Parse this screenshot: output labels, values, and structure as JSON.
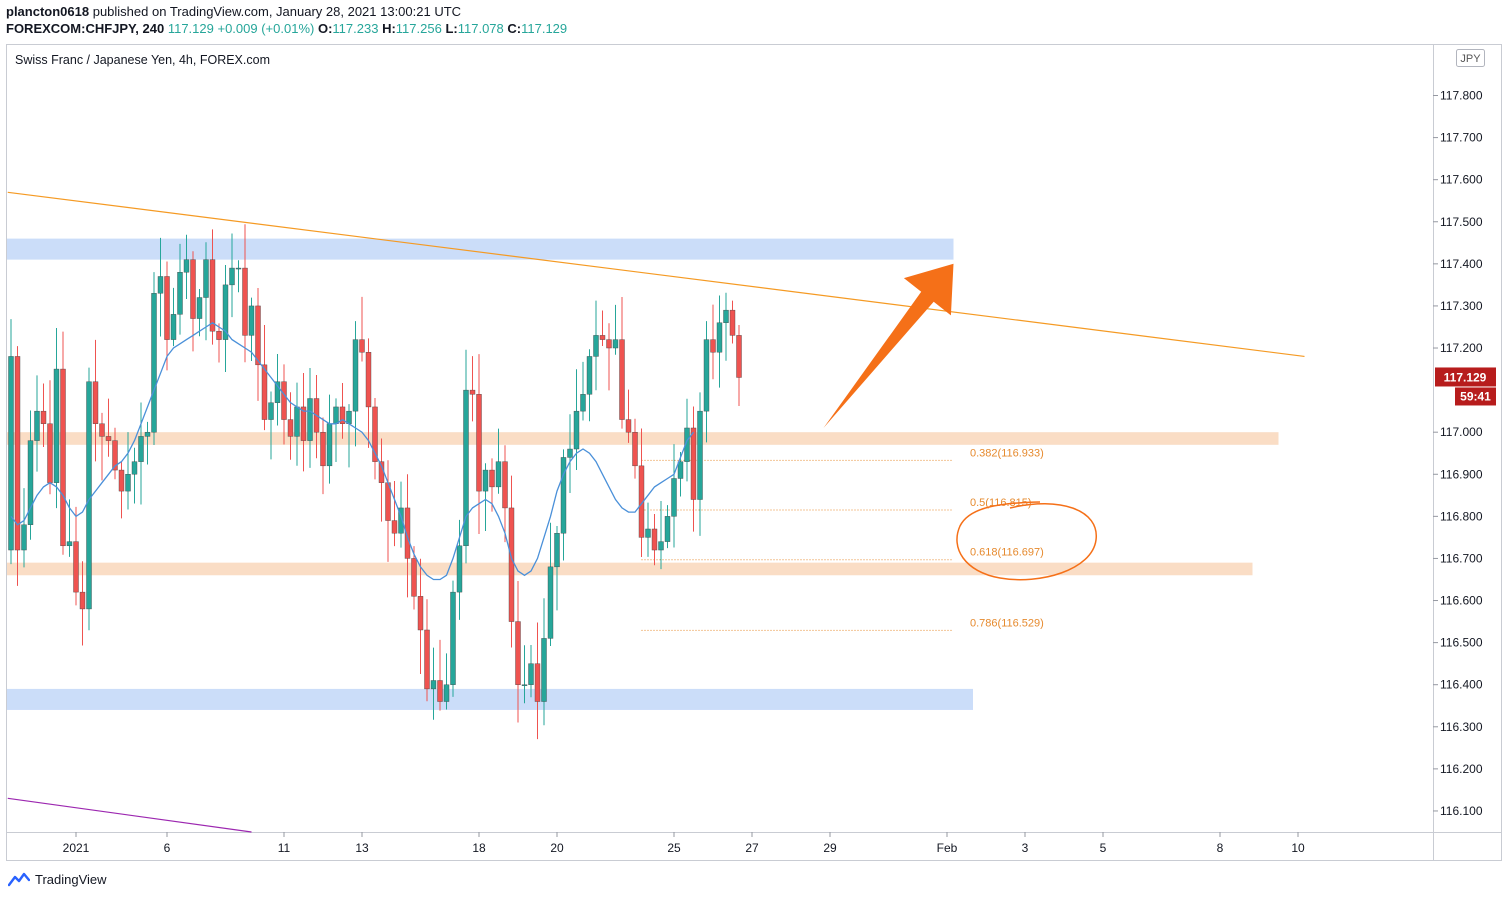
{
  "header": {
    "user": "plancton0618",
    "published_text": "published on TradingView.com, January 28, 2021 13:00:21 UTC",
    "symbol": "FOREXCOM:CHFJPY, 240",
    "last": "117.129",
    "change": "+0.009 (+0.01%)",
    "o_label": "O:",
    "o": "117.233",
    "h_label": "H:",
    "h": "117.256",
    "l_label": "L:",
    "l": "117.078",
    "c_label": "C:",
    "c": "117.129"
  },
  "chart_title": "Swiss Franc / Japanese Yen, 4h, FOREX.com",
  "currency_badge": "JPY",
  "price_label": "117.129",
  "countdown_label": "59:41",
  "footer": {
    "brand": "TradingView"
  },
  "colors": {
    "up": "#26a69a",
    "down": "#ef5350",
    "wick": "#6d6d6d",
    "ma": "#4a90d9",
    "trendline": "#f59a23",
    "fib": "#e68a2e",
    "blue_zone": "#a9c6f5",
    "orange_zone": "#f8d2b2",
    "arrow": "#f57018",
    "price_badge": "#b71c1c"
  },
  "chart_data": {
    "type": "candlestick",
    "timeframe": "4h",
    "ylim": [
      116.05,
      117.92
    ],
    "y_ticks": [
      "117.800",
      "117.700",
      "117.600",
      "117.500",
      "117.400",
      "117.300",
      "117.200",
      "117.000",
      "116.900",
      "116.800",
      "116.700",
      "116.600",
      "116.500",
      "116.400",
      "116.300",
      "116.200",
      "116.100"
    ],
    "x_ticks": [
      {
        "label": "2021",
        "bar": 10
      },
      {
        "label": "6",
        "bar": 24
      },
      {
        "label": "11",
        "bar": 42
      },
      {
        "label": "13",
        "bar": 54
      },
      {
        "label": "18",
        "bar": 72
      },
      {
        "label": "20",
        "bar": 84
      },
      {
        "label": "25",
        "bar": 102
      },
      {
        "label": "27",
        "bar": 114
      },
      {
        "label": "29",
        "bar": 126
      },
      {
        "label": "Feb",
        "bar": 144
      },
      {
        "label": "3",
        "bar": 156
      },
      {
        "label": "5",
        "bar": 168
      },
      {
        "label": "8",
        "bar": 186
      },
      {
        "label": "10",
        "bar": 198
      }
    ],
    "closes": [
      117.18,
      116.72,
      116.78,
      116.98,
      117.05,
      117.02,
      116.88,
      117.15,
      116.73,
      116.74,
      116.62,
      116.58,
      117.12,
      117.02,
      116.99,
      116.98,
      116.91,
      116.86,
      116.9,
      116.93,
      116.99,
      117.0,
      117.33,
      117.37,
      117.22,
      117.28,
      117.38,
      117.41,
      117.27,
      117.32,
      117.41,
      117.24,
      117.22,
      117.35,
      117.39,
      117.39,
      117.23,
      117.3,
      117.16,
      117.03,
      117.07,
      117.12,
      117.03,
      116.99,
      117.06,
      116.98,
      117.08,
      117.0,
      116.92,
      117.02,
      117.06,
      117.02,
      117.05,
      117.22,
      117.19,
      117.06,
      116.93,
      116.88,
      116.79,
      116.76,
      116.82,
      116.7,
      116.61,
      116.53,
      116.39,
      116.41,
      116.36,
      116.4,
      116.62,
      116.73,
      117.1,
      117.09,
      116.86,
      116.91,
      116.87,
      116.93,
      116.82,
      116.55,
      116.4,
      116.4,
      116.45,
      116.36,
      116.51,
      116.68,
      116.76,
      116.94,
      116.96,
      117.05,
      117.09,
      117.18,
      117.23,
      117.22,
      117.2,
      117.22,
      117.03,
      117.0,
      116.92,
      116.75,
      116.77,
      116.72,
      116.74,
      116.8,
      116.89,
      116.93,
      117.01,
      116.84,
      117.05,
      117.22,
      117.19,
      117.26,
      117.29,
      117.23,
      117.13
    ],
    "ma": [
      116.8,
      116.78,
      116.79,
      116.82,
      116.85,
      116.87,
      116.88,
      116.87,
      116.85,
      116.82,
      116.8,
      116.81,
      116.84,
      116.86,
      116.88,
      116.9,
      116.92,
      116.93,
      116.95,
      116.98,
      117.02,
      117.06,
      117.1,
      117.14,
      117.18,
      117.2,
      117.21,
      117.22,
      117.23,
      117.24,
      117.25,
      117.26,
      117.25,
      117.24,
      117.22,
      117.21,
      117.2,
      117.19,
      117.17,
      117.15,
      117.13,
      117.11,
      117.09,
      117.07,
      117.06,
      117.05,
      117.05,
      117.04,
      117.03,
      117.02,
      117.02,
      117.03,
      117.02,
      117.01,
      117.0,
      116.98,
      116.95,
      116.92,
      116.88,
      116.84,
      116.8,
      116.75,
      116.71,
      116.68,
      116.66,
      116.65,
      116.65,
      116.66,
      116.7,
      116.75,
      116.8,
      116.82,
      116.83,
      116.84,
      116.83,
      116.8,
      116.76,
      116.7,
      116.67,
      116.66,
      116.67,
      116.7,
      116.75,
      116.8,
      116.86,
      116.9,
      116.93,
      116.95,
      116.96,
      116.95,
      116.93,
      116.9,
      116.87,
      116.84,
      116.82,
      116.81,
      116.81,
      116.83,
      116.85,
      116.87,
      116.88,
      116.89,
      116.9,
      116.94,
      116.98,
      117.0
    ],
    "zones": [
      {
        "color": "blue",
        "top": 117.46,
        "bottom": 117.41,
        "bar_end": 145
      },
      {
        "color": "orange",
        "top": 117.0,
        "bottom": 116.97,
        "bar_end": 195
      },
      {
        "color": "orange",
        "top": 116.69,
        "bottom": 116.66,
        "bar_end": 191
      },
      {
        "color": "blue",
        "top": 116.39,
        "bottom": 116.34,
        "bar_end": 148
      }
    ],
    "trendlines": [
      {
        "color": "orange",
        "p1": {
          "bar": -0.5,
          "y": 117.57
        },
        "p2": {
          "bar": 199,
          "y": 117.18
        }
      },
      {
        "color": "purple",
        "p1": {
          "bar": -0.5,
          "y": 116.13
        },
        "p2": {
          "bar": 37,
          "y": 116.05
        }
      }
    ],
    "fib_levels": [
      {
        "label": "0.382(116.933)",
        "value": 116.933,
        "bar_start": 97,
        "bar_end": 145
      },
      {
        "label": "0.5(116.815)",
        "value": 116.815,
        "bar_start": 97,
        "bar_end": 145
      },
      {
        "label": "0.618(116.697)",
        "value": 116.697,
        "bar_start": 97,
        "bar_end": 145
      },
      {
        "label": "0.786(116.529)",
        "value": 116.529,
        "bar_start": 97,
        "bar_end": 145
      }
    ],
    "highlight_ellipse_around": "0.5 / 0.618 fib levels",
    "arrow": {
      "from": {
        "bar": 125,
        "y": 117.01
      },
      "to": {
        "bar": 145,
        "y": 117.4
      }
    }
  }
}
